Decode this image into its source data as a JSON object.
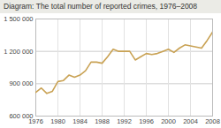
{
  "chart_data": {
    "type": "line",
    "title": "Diagram: The total number of reported crimes, 1976–2008",
    "x": [
      1976,
      1977,
      1978,
      1979,
      1980,
      1981,
      1982,
      1983,
      1984,
      1985,
      1986,
      1987,
      1988,
      1989,
      1990,
      1991,
      1992,
      1993,
      1994,
      1995,
      1996,
      1997,
      1998,
      1999,
      2000,
      2001,
      2002,
      2003,
      2004,
      2005,
      2006,
      2007,
      2008
    ],
    "values": [
      820000,
      860000,
      810000,
      830000,
      920000,
      930000,
      980000,
      960000,
      980000,
      1020000,
      1100000,
      1100000,
      1090000,
      1150000,
      1220000,
      1200000,
      1200000,
      1200000,
      1120000,
      1150000,
      1180000,
      1170000,
      1180000,
      1200000,
      1220000,
      1190000,
      1230000,
      1260000,
      1250000,
      1240000,
      1230000,
      1300000,
      1380000
    ],
    "color": "#c9a254",
    "xlim": [
      1976,
      2008
    ],
    "xticks": [
      1976,
      1980,
      1984,
      1988,
      1992,
      1996,
      2000,
      2004,
      2008
    ],
    "ylim": [
      600000,
      1500000
    ],
    "yticks": [
      {
        "value": 600000,
        "label": "600 000"
      },
      {
        "value": 900000,
        "label": "900 000"
      },
      {
        "value": 1200000,
        "label": "1 200 000"
      },
      {
        "value": 1500000,
        "label": "1 500 000"
      }
    ],
    "grid": true
  }
}
